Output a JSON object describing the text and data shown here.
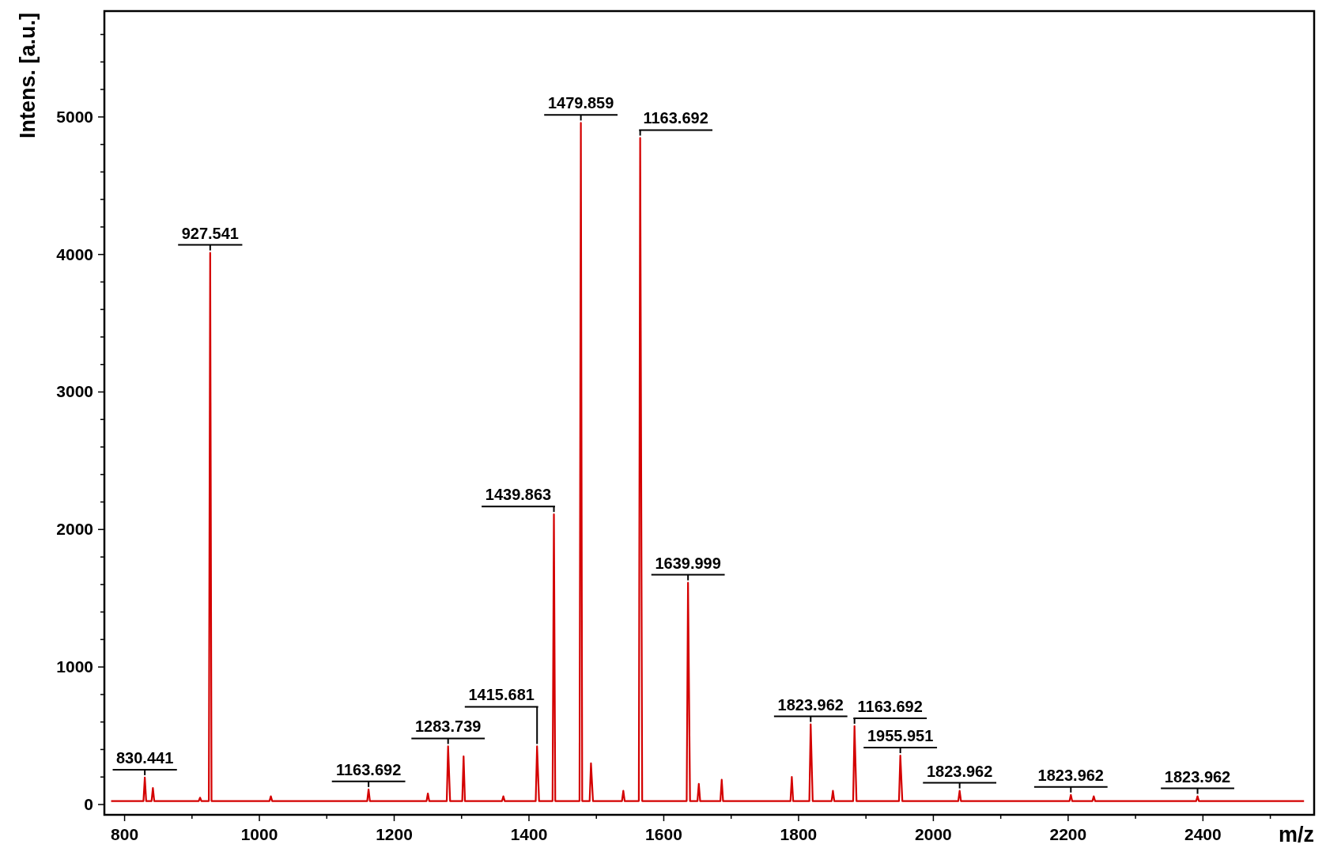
{
  "chart_data": {
    "type": "line",
    "xlabel": "m/z",
    "ylabel": "Intens. [a.u.]",
    "x": [
      780,
      828,
      830,
      832,
      840,
      842,
      844,
      910,
      912,
      914,
      925,
      927,
      929,
      1015,
      1017,
      1019,
      1160,
      1162,
      1164,
      1248,
      1250,
      1252,
      1278,
      1280,
      1283,
      1301,
      1303,
      1305,
      1360,
      1362,
      1364,
      1410,
      1412,
      1415,
      1435,
      1437,
      1439,
      1475,
      1477,
      1479,
      1490,
      1492,
      1495,
      1538,
      1540,
      1542,
      1563,
      1565,
      1568,
      1634,
      1636,
      1639,
      1650,
      1652,
      1654,
      1684,
      1686,
      1688,
      1788,
      1790,
      1792,
      1816,
      1818,
      1821,
      1849,
      1851,
      1853,
      1881,
      1883,
      1886,
      1949,
      1951,
      1954,
      2037,
      2039,
      2041,
      2202,
      2204,
      2206,
      2236,
      2238,
      2240,
      2390,
      2392,
      2394,
      2550
    ],
    "series": [
      {
        "color": "#d40000",
        "values": [
          25,
          25,
          196,
          25,
          25,
          120,
          25,
          25,
          50,
          25,
          25,
          4012,
          25,
          25,
          60,
          25,
          25,
          110,
          25,
          25,
          80,
          25,
          25,
          423,
          25,
          25,
          350,
          25,
          25,
          60,
          25,
          25,
          423,
          25,
          25,
          2110,
          25,
          25,
          4957,
          25,
          25,
          300,
          25,
          25,
          100,
          25,
          25,
          4847,
          25,
          25,
          1613,
          25,
          25,
          150,
          25,
          25,
          180,
          25,
          25,
          200,
          25,
          25,
          583,
          25,
          25,
          100,
          25,
          25,
          570,
          25,
          25,
          356,
          25,
          25,
          100,
          25,
          25,
          70,
          25,
          25,
          60,
          25,
          25,
          60,
          25,
          25
        ]
      }
    ],
    "xlim": [
      770,
      2565
    ],
    "ylim": [
      -75,
      5770
    ],
    "xticks": [
      800,
      {
        "value": 900,
        "label": null
      },
      1000,
      {
        "value": 1100,
        "label": null
      },
      1200,
      {
        "value": 1300,
        "label": null
      },
      1400,
      {
        "value": 1500,
        "label": null
      },
      1600,
      {
        "value": 1700,
        "label": null
      },
      1800,
      {
        "value": 1900,
        "label": null
      },
      2000,
      {
        "value": 2100,
        "label": null
      },
      2200,
      {
        "value": 2300,
        "label": null
      },
      2400,
      {
        "value": 2500,
        "label": null
      }
    ],
    "yticks": [
      0,
      {
        "value": 200,
        "label": null
      },
      {
        "value": 400,
        "label": null
      },
      {
        "value": 600,
        "label": null
      },
      {
        "value": 800,
        "label": null
      },
      1000,
      {
        "value": 1200,
        "label": null
      },
      {
        "value": 1400,
        "label": null
      },
      {
        "value": 1600,
        "label": null
      },
      {
        "value": 1800,
        "label": null
      },
      2000,
      {
        "value": 2200,
        "label": null
      },
      {
        "value": 2400,
        "label": null
      },
      {
        "value": 2600,
        "label": null
      },
      {
        "value": 2800,
        "label": null
      },
      3000,
      {
        "value": 3200,
        "label": null
      },
      {
        "value": 3400,
        "label": null
      },
      {
        "value": 3600,
        "label": null
      },
      {
        "value": 3800,
        "label": null
      },
      4000,
      {
        "value": 4200,
        "label": null
      },
      {
        "value": 4400,
        "label": null
      },
      {
        "value": 4600,
        "label": null
      },
      {
        "value": 4800,
        "label": null
      },
      5000,
      {
        "value": 5200,
        "label": null
      },
      {
        "value": 5400,
        "label": null
      },
      {
        "value": 5600,
        "label": null
      }
    ],
    "annotations": [
      {
        "text": "830.441",
        "x": 830,
        "y": 196
      },
      {
        "text": "927.541",
        "x": 927,
        "y": 4012
      },
      {
        "text": "1163.692",
        "x": 1162,
        "y": 110
      },
      {
        "text": "1283.739",
        "x": 1280,
        "y": 423
      },
      {
        "text": "1415.681",
        "x": 1412,
        "y": 423
      },
      {
        "text": "1439.863",
        "x": 1437,
        "y": 2110
      },
      {
        "text": "1479.859",
        "x": 1477,
        "y": 4957
      },
      {
        "text": "1163.692",
        "x": 1565,
        "y": 4847
      },
      {
        "text": "1639.999",
        "x": 1636,
        "y": 1613
      },
      {
        "text": "1823.962",
        "x": 1818,
        "y": 583
      },
      {
        "text": "1163.692",
        "x": 1883,
        "y": 570
      },
      {
        "text": "1955.951",
        "x": 1951,
        "y": 356
      },
      {
        "text": "1823.962",
        "x": 2039,
        "y": 100
      },
      {
        "text": "1823.962",
        "x": 2204,
        "y": 70
      },
      {
        "text": "1823.962",
        "x": 2392,
        "y": 60
      }
    ]
  }
}
